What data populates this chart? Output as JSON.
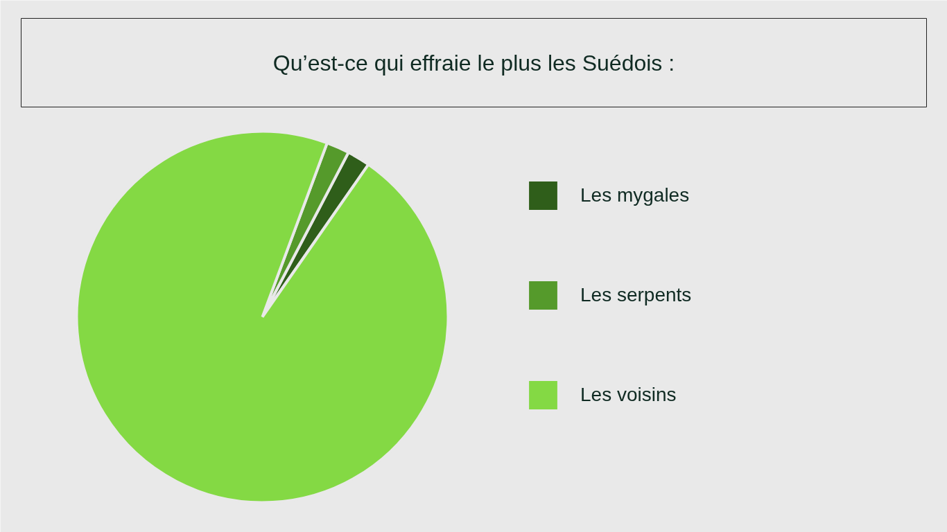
{
  "chart_data": {
    "type": "pie",
    "title": "Qu’est-ce qui effraie le plus les Suédois :",
    "categories": [
      "Les mygales",
      "Les serpents",
      "Les voisins"
    ],
    "values": [
      2,
      2,
      96
    ],
    "colors": [
      "#2f5e1a",
      "#559a2b",
      "#84d944"
    ],
    "legend": "right"
  }
}
